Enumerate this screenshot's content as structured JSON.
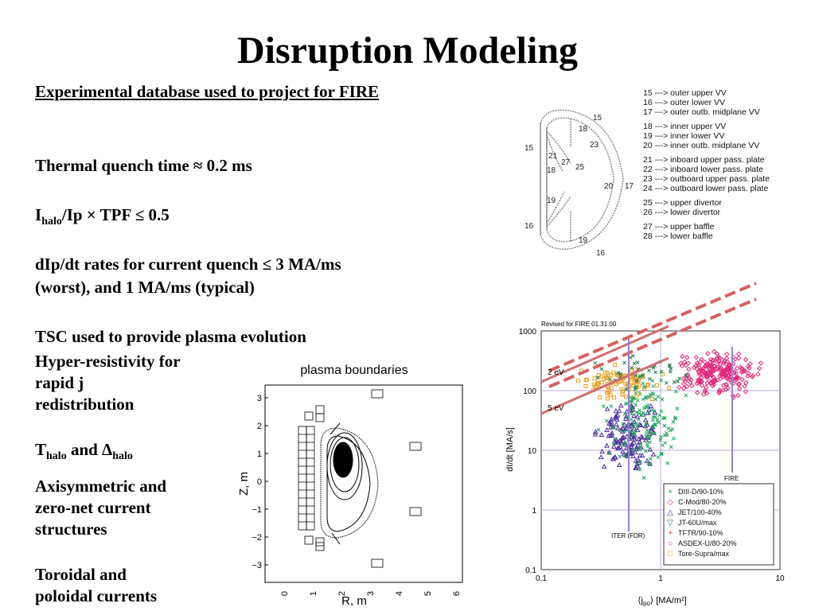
{
  "title": "Disruption Modeling",
  "left": {
    "database_heading": "Experimental database used to project for FIRE",
    "thermal_quench": "Thermal quench time ≈ 0.2 ms",
    "halo_main": "I",
    "halo_sub": "halo",
    "halo_rest": "/Ip × TPF ≤ 0.5",
    "dip_line1": "dIp/dt rates for current quench ≤ 3 MA/ms",
    "dip_line2": "(worst), and 1 MA/ms (typical)",
    "tsc": "TSC used to provide plasma evolution",
    "hyper_line1": "Hyper-resistivity for",
    "hyper_line2": "rapid j",
    "hyper_line3": "redistribution",
    "thalo_a": "T",
    "thalo_sub1": "halo",
    "thalo_and": " and Δ",
    "thalo_sub2": "halo",
    "axi_line1": "Axisymmetric and",
    "axi_line2": "zero-net current",
    "axi_line3": "structures",
    "toro_line1": "Toroidal and",
    "toro_line2": "poloidal currents"
  },
  "vessel_legend": [
    "15 ---> outer upper VV",
    "16 ---> outer lower VV",
    "17 ---> outer outb. midplane VV",
    "",
    "18 ---> inner upper VV",
    "19 ---> inner lower VV",
    "20 ---> inner outb. midplane VV",
    "",
    "21 ---> inboard upper pass. plate",
    "22 ---> inboard lower pass. plate",
    "23 ---> outboard upper pass. plate",
    "24 ---> outboard lower pass. plate",
    "",
    "25 ---> upper divertor",
    "26 ---> lower divertor",
    "",
    "27 ---> upper baffle",
    "28 ---> lower baffle"
  ],
  "vessel_labels": [
    "15",
    "18",
    "15",
    "21",
    "27",
    "25",
    "23",
    "18",
    "20",
    "17",
    "19",
    "16",
    "19",
    "16"
  ],
  "plasma_plot": {
    "title": "plasma boundaries",
    "xlabel": "R, m",
    "ylabel": "Z, m",
    "xticks": [
      "0",
      "1",
      "2",
      "3",
      "4",
      "5",
      "6"
    ],
    "yticks": [
      "3",
      "2",
      "1",
      "0",
      "−1",
      "−2",
      "−3"
    ]
  },
  "disruption_chart": {
    "note": "Revised for FIRE 01.31.00",
    "xlabel": "⟨j",
    "xlabel_sub": "po",
    "xlabel_end": "⟩ [MA/m²]",
    "ylabel": "dI/dt [MA/s]",
    "xticks": [
      "0.1",
      "1",
      "10"
    ],
    "yticks": [
      "1000",
      "100",
      "10",
      "1",
      "0.1"
    ],
    "line_labels": [
      "2 eV",
      "5 eV"
    ],
    "iter_label": "ITER (FDR)",
    "fire_label": "FIRE",
    "legend": [
      {
        "symbol": "×",
        "label": "DIII-D/90-10%",
        "color": "#1aa35a"
      },
      {
        "symbol": "◇",
        "label": "C-Mod/80-20%",
        "color": "#e0287a"
      },
      {
        "symbol": "△",
        "label": "JET/100-40%",
        "color": "#4b2a9a"
      },
      {
        "symbol": "▽",
        "label": "JT-60U/max",
        "color": "#1f7a4a"
      },
      {
        "symbol": "+",
        "label": "TFTR/90-10%",
        "color": "#e03b3b"
      },
      {
        "symbol": "○",
        "label": "ASDEX-U/80-20%",
        "color": "#d64070"
      },
      {
        "symbol": "□",
        "label": "Tore-Supra/max",
        "color": "#e8a020"
      }
    ]
  }
}
